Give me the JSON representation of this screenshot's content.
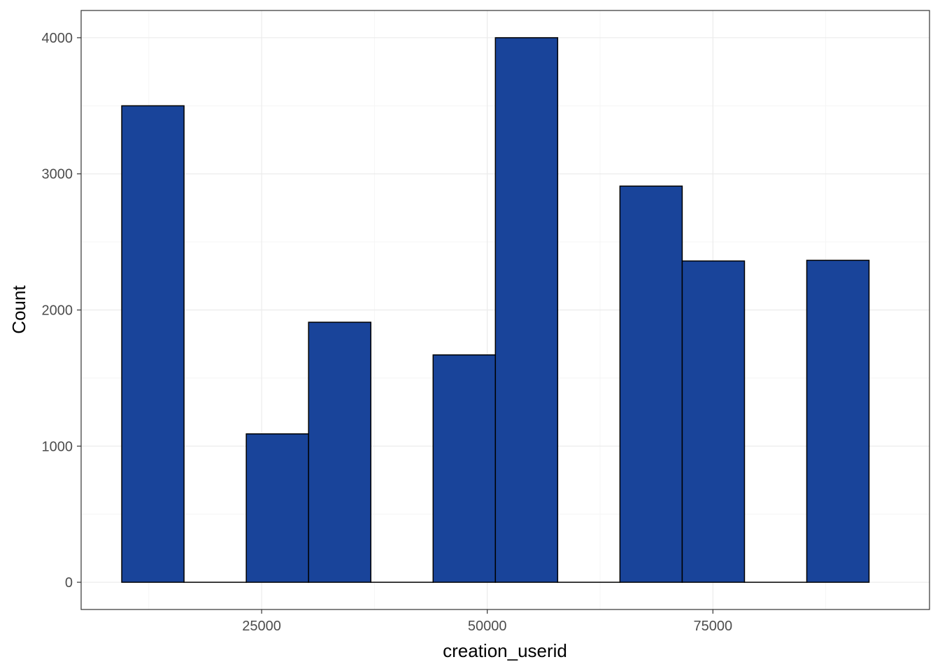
{
  "chart_data": {
    "type": "bar",
    "subtype": "histogram",
    "title": "",
    "xlabel": "creation_userid",
    "ylabel": "Count",
    "xlim": [
      5000,
      99000
    ],
    "ylim": [
      -200,
      4200
    ],
    "x_ticks": [
      25000,
      50000,
      75000
    ],
    "y_ticks": [
      0,
      1000,
      2000,
      3000,
      4000
    ],
    "x_tick_labels": [
      "25000",
      "50000",
      "75000"
    ],
    "y_tick_labels": [
      "0",
      "1000",
      "2000",
      "3000",
      "4000"
    ],
    "grid": true,
    "legend": "none",
    "bin_width": 6900,
    "bins": [
      {
        "x0": 9500,
        "x1": 16400,
        "count": 3500
      },
      {
        "x0": 16400,
        "x1": 23300,
        "count": 0
      },
      {
        "x0": 23300,
        "x1": 30200,
        "count": 1090
      },
      {
        "x0": 30200,
        "x1": 37100,
        "count": 1910
      },
      {
        "x0": 37100,
        "x1": 44000,
        "count": 0
      },
      {
        "x0": 44000,
        "x1": 50900,
        "count": 1670
      },
      {
        "x0": 50900,
        "x1": 57800,
        "count": 4000
      },
      {
        "x0": 57800,
        "x1": 64700,
        "count": 0
      },
      {
        "x0": 64700,
        "x1": 71600,
        "count": 2910
      },
      {
        "x0": 71600,
        "x1": 78500,
        "count": 2360
      },
      {
        "x0": 78500,
        "x1": 85400,
        "count": 0
      },
      {
        "x0": 85400,
        "x1": 92300,
        "count": 2365
      }
    ],
    "colors": {
      "bar_fill": "#19449A",
      "bar_stroke": "#000000",
      "panel_border": "#333333",
      "grid_major": "#EBEBEB",
      "grid_minor": "#F5F5F5"
    }
  }
}
